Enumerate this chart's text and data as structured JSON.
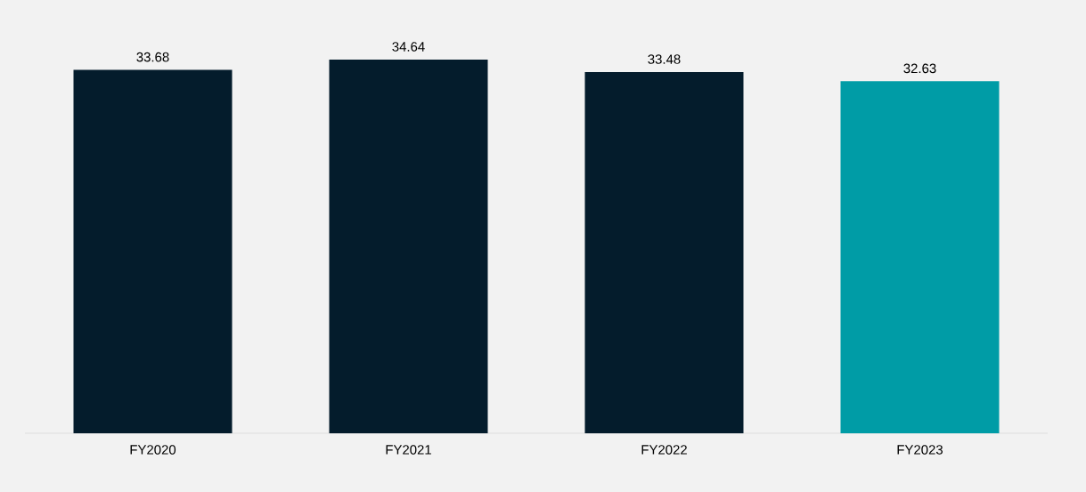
{
  "chart_data": {
    "type": "bar",
    "categories": [
      "FY2020",
      "FY2021",
      "FY2022",
      "FY2023"
    ],
    "values": [
      33.68,
      34.64,
      33.48,
      32.63
    ],
    "colors": [
      "#041c2c",
      "#041c2c",
      "#041c2c",
      "#009ca6"
    ],
    "data_labels": true
  }
}
